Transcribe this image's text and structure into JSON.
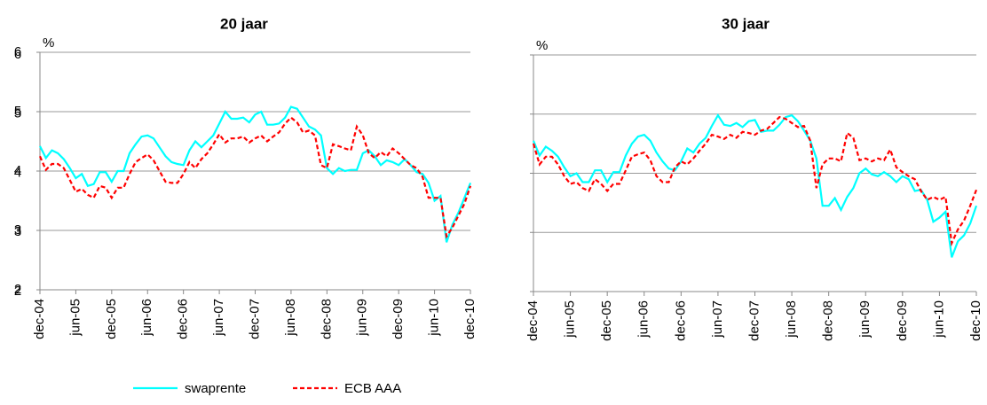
{
  "chart_data": [
    {
      "type": "line",
      "title": "20 jaar",
      "y_label": "%",
      "categories": [
        "dec-04",
        null,
        null,
        null,
        null,
        null,
        "jun-05",
        null,
        null,
        null,
        null,
        null,
        "dec-05",
        null,
        null,
        null,
        null,
        null,
        "jun-06",
        null,
        null,
        null,
        null,
        null,
        "dec-06",
        null,
        null,
        null,
        null,
        null,
        "jun-07",
        null,
        null,
        null,
        null,
        null,
        "dec-07",
        null,
        null,
        null,
        null,
        null,
        "jun-08",
        null,
        null,
        null,
        null,
        null,
        "dec-08",
        null,
        null,
        null,
        null,
        null,
        "jun-09",
        null,
        null,
        null,
        null,
        null,
        "dec-09",
        null,
        null,
        null,
        null,
        null,
        "jun-10",
        null,
        null,
        null,
        null,
        null,
        "dec-10"
      ],
      "ylim": [
        2,
        6
      ],
      "yticks": [
        2,
        3,
        4,
        5,
        6
      ],
      "grid": true,
      "series": [
        {
          "name": "swaprente",
          "color": "#00ffff",
          "dashed": false,
          "values": [
            4.42,
            4.22,
            4.35,
            4.3,
            4.2,
            4.05,
            3.88,
            3.95,
            3.75,
            3.78,
            3.98,
            3.98,
            3.82,
            4.0,
            4.0,
            4.3,
            4.45,
            4.58,
            4.6,
            4.55,
            4.4,
            4.25,
            4.15,
            4.12,
            4.1,
            4.35,
            4.5,
            4.4,
            4.5,
            4.6,
            4.8,
            5.0,
            4.88,
            4.88,
            4.9,
            4.82,
            4.95,
            5.0,
            4.78,
            4.78,
            4.8,
            4.9,
            5.08,
            5.05,
            4.9,
            4.75,
            4.7,
            4.6,
            4.05,
            3.95,
            4.05,
            4.0,
            4.02,
            4.02,
            4.3,
            4.35,
            4.25,
            4.1,
            4.18,
            4.15,
            4.1,
            4.2,
            4.1,
            3.98,
            3.95,
            3.8,
            3.5,
            3.58,
            2.8,
            3.1,
            3.3,
            3.55,
            3.8
          ]
        },
        {
          "name": "ECB AAA",
          "color": "#ff0000",
          "dashed": true,
          "values": [
            4.25,
            4.02,
            4.12,
            4.12,
            4.05,
            3.85,
            3.65,
            3.7,
            3.6,
            3.55,
            3.75,
            3.72,
            3.55,
            3.72,
            3.72,
            3.95,
            4.15,
            4.22,
            4.28,
            4.18,
            4.0,
            3.82,
            3.8,
            3.8,
            3.95,
            4.15,
            4.05,
            4.2,
            4.3,
            4.45,
            4.62,
            4.48,
            4.55,
            4.55,
            4.58,
            4.48,
            4.55,
            4.6,
            4.5,
            4.58,
            4.65,
            4.8,
            4.9,
            4.82,
            4.65,
            4.68,
            4.6,
            4.1,
            4.05,
            4.45,
            4.42,
            4.38,
            4.35,
            4.75,
            4.6,
            4.3,
            4.22,
            4.32,
            4.25,
            4.38,
            4.3,
            4.2,
            4.1,
            4.05,
            3.9,
            3.55,
            3.55,
            3.55,
            2.9,
            3.05,
            3.25,
            3.45,
            3.75
          ]
        }
      ]
    },
    {
      "type": "line",
      "title": "30 jaar",
      "y_label": "%",
      "categories": [
        "dec-04",
        null,
        null,
        null,
        null,
        null,
        "jun-05",
        null,
        null,
        null,
        null,
        null,
        "dec-05",
        null,
        null,
        null,
        null,
        null,
        "jun-06",
        null,
        null,
        null,
        null,
        null,
        "dec-06",
        null,
        null,
        null,
        null,
        null,
        "jun-07",
        null,
        null,
        null,
        null,
        null,
        "dec-07",
        null,
        null,
        null,
        null,
        null,
        "jun-08",
        null,
        null,
        null,
        null,
        null,
        "dec-08",
        null,
        null,
        null,
        null,
        null,
        "jun-09",
        null,
        null,
        null,
        null,
        null,
        "dec-09",
        null,
        null,
        null,
        null,
        null,
        "jun-10",
        null,
        null,
        null,
        null,
        null,
        "dec-10"
      ],
      "ylim": [
        2,
        6
      ],
      "yticks": [
        2,
        3,
        4,
        5,
        6
      ],
      "grid": true,
      "series": [
        {
          "color": "#00ffff",
          "dashed": false,
          "values": [
            4.55,
            4.3,
            4.45,
            4.38,
            4.28,
            4.1,
            3.95,
            4.0,
            3.85,
            3.85,
            4.05,
            4.05,
            3.85,
            4.02,
            4.02,
            4.3,
            4.5,
            4.62,
            4.65,
            4.55,
            4.35,
            4.2,
            4.08,
            4.05,
            4.2,
            4.42,
            4.35,
            4.5,
            4.6,
            4.8,
            4.98,
            4.82,
            4.8,
            4.85,
            4.78,
            4.88,
            4.9,
            4.7,
            4.72,
            4.72,
            4.82,
            4.95,
            4.98,
            4.88,
            4.72,
            4.55,
            4.25,
            3.45,
            3.45,
            3.58,
            3.38,
            3.6,
            3.75,
            4.0,
            4.08,
            3.98,
            3.95,
            4.02,
            3.95,
            3.85,
            3.95,
            3.9,
            3.7,
            3.72,
            3.55,
            3.18,
            3.25,
            3.35,
            2.58,
            2.85,
            2.95,
            3.15,
            3.45
          ]
        },
        {
          "color": "#ff0000",
          "dashed": true,
          "values": [
            4.5,
            4.15,
            4.28,
            4.28,
            4.15,
            3.95,
            3.82,
            3.85,
            3.75,
            3.7,
            3.9,
            3.82,
            3.7,
            3.82,
            3.82,
            4.05,
            4.28,
            4.32,
            4.35,
            4.22,
            3.95,
            3.85,
            3.85,
            4.1,
            4.2,
            4.15,
            4.25,
            4.38,
            4.5,
            4.65,
            4.62,
            4.58,
            4.65,
            4.6,
            4.7,
            4.68,
            4.65,
            4.72,
            4.75,
            4.85,
            4.95,
            4.92,
            4.85,
            4.78,
            4.8,
            4.55,
            3.75,
            4.15,
            4.25,
            4.25,
            4.2,
            4.68,
            4.6,
            4.22,
            4.25,
            4.2,
            4.25,
            4.22,
            4.4,
            4.1,
            4.02,
            3.95,
            3.9,
            3.7,
            3.55,
            3.6,
            3.55,
            3.6,
            2.82,
            3.05,
            3.2,
            3.45,
            3.72
          ]
        }
      ]
    }
  ]
}
